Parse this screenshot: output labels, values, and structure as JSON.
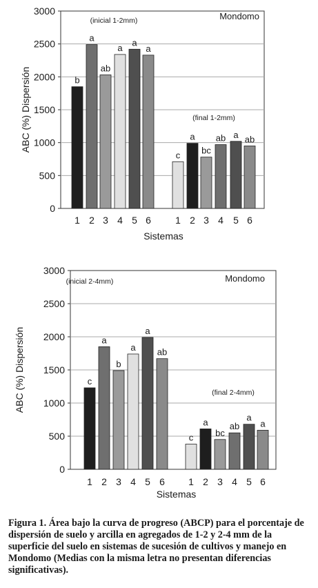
{
  "chart_data": [
    {
      "type": "bar",
      "location_label": "Mondomo",
      "ylabel": "ABC (%) Dispersión",
      "xlabel": "Sistemas",
      "ylim": [
        0,
        3000
      ],
      "yticks": [
        0,
        500,
        1000,
        1500,
        2000,
        2500,
        3000
      ],
      "grid": true,
      "groups": [
        {
          "label": "(inicial 1-2mm)",
          "categories": [
            "1",
            "2",
            "3",
            "4",
            "5",
            "6"
          ],
          "values": [
            1850,
            2490,
            2030,
            2340,
            2420,
            2330
          ],
          "letters": [
            "b",
            "a",
            "ab",
            "a",
            "a",
            "a"
          ],
          "colors": [
            "#1e1e1e",
            "#6f6f6f",
            "#9a9a9a",
            "#e0e0e0",
            "#4f4f4f",
            "#8a8a8a"
          ]
        },
        {
          "label": "(final 1-2mm)",
          "categories": [
            "1",
            "2",
            "3",
            "4",
            "5",
            "6"
          ],
          "values": [
            710,
            990,
            780,
            970,
            1020,
            950
          ],
          "letters": [
            "c",
            "a",
            "bc",
            "ab",
            "a",
            "ab"
          ],
          "colors": [
            "#e0e0e0",
            "#1e1e1e",
            "#9a9a9a",
            "#6f6f6f",
            "#4f4f4f",
            "#8a8a8a"
          ]
        }
      ]
    },
    {
      "type": "bar",
      "location_label": "Mondomo",
      "ylabel": "ABC (%) Dispersión",
      "xlabel": "Sistemas",
      "ylim": [
        0,
        3000
      ],
      "yticks": [
        0,
        500,
        1000,
        1500,
        2000,
        2500,
        3000
      ],
      "grid": true,
      "groups": [
        {
          "label": "(inicial 2-4mm)",
          "categories": [
            "1",
            "2",
            "3",
            "4",
            "5",
            "6"
          ],
          "values": [
            1230,
            1850,
            1490,
            1740,
            1990,
            1670
          ],
          "letters": [
            "c",
            "a",
            "b",
            "a",
            "a",
            "ab"
          ],
          "colors": [
            "#1e1e1e",
            "#6f6f6f",
            "#9a9a9a",
            "#e0e0e0",
            "#4f4f4f",
            "#8a8a8a"
          ]
        },
        {
          "label": "(final 2-4mm)",
          "categories": [
            "1",
            "2",
            "3",
            "4",
            "5",
            "6"
          ],
          "values": [
            380,
            610,
            450,
            550,
            680,
            590
          ],
          "letters": [
            "c",
            "a",
            "bc",
            "ab",
            "a",
            "a"
          ],
          "colors": [
            "#e0e0e0",
            "#1e1e1e",
            "#9a9a9a",
            "#6f6f6f",
            "#4f4f4f",
            "#8a8a8a"
          ]
        }
      ]
    }
  ],
  "caption": "Figura 1. Área bajo la curva de progreso (ABCP) para el porcentaje de dispersión de suelo y arcilla en agregados de 1-2 y 2-4 mm de la superficie del suelo en sistemas de sucesión de cultivos y manejo en Mondomo (Medias con la misma letra no presentan diferencias significativas)."
}
